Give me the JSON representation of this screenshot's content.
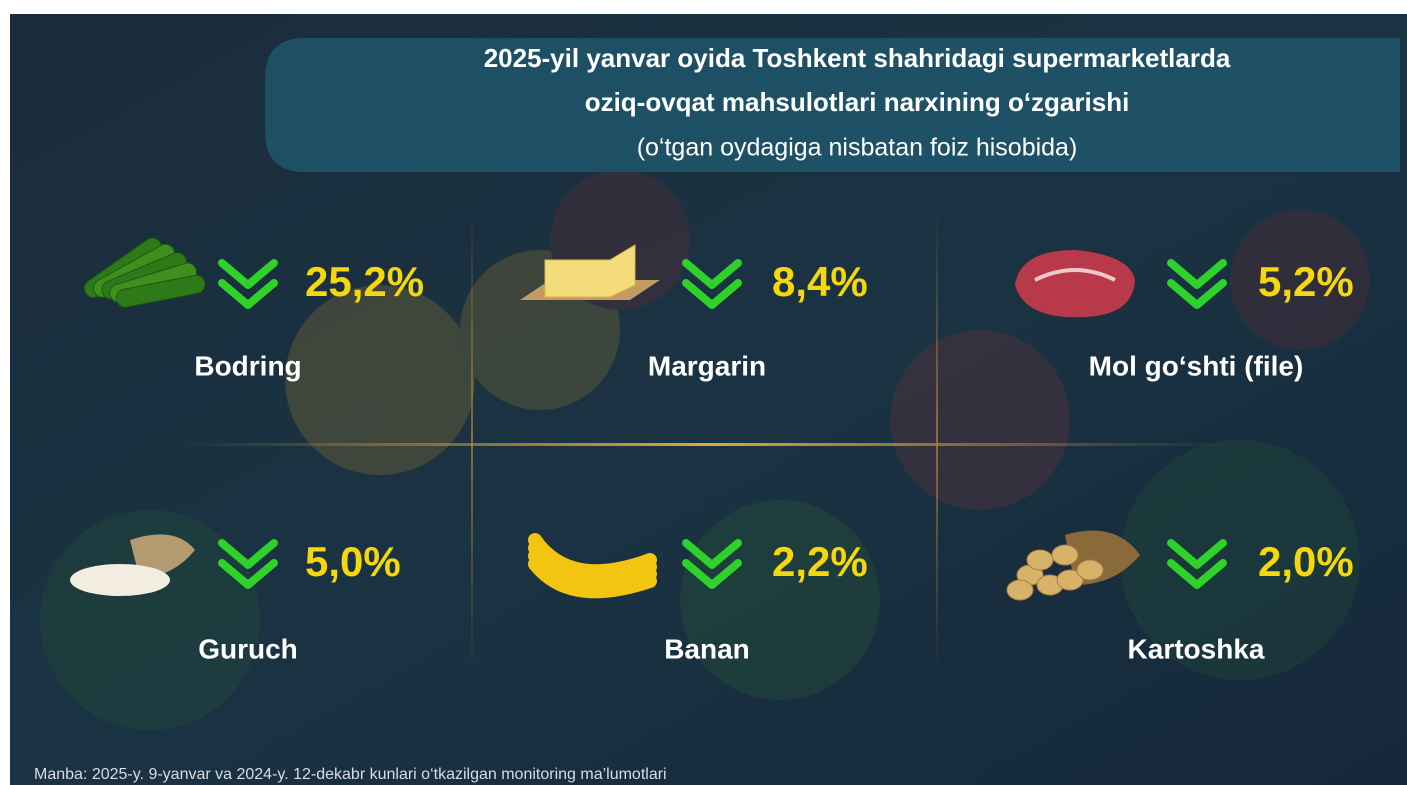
{
  "header": {
    "title_lines": [
      "2025-yil yanvar oyida Toshkent shahridagi supermarketlarda",
      "oziq-ovqat mahsulotlari narxining o‘zgarishi",
      "(o‘tgan oydagiga nisbatan foiz hisobida)"
    ]
  },
  "items": [
    {
      "name": "Bodring",
      "change": "25,2%"
    },
    {
      "name": "Margarin",
      "change": "8,4%"
    },
    {
      "name": "Mol go‘shti (file)",
      "change": "5,2%"
    },
    {
      "name": "Guruch",
      "change": "5,0%"
    },
    {
      "name": "Banan",
      "change": "2,2%"
    },
    {
      "name": "Kartoshka",
      "change": "2,0%"
    }
  ],
  "footer": {
    "source": "Manba: 2025-y.  9-yanvar va 2024-y. 12-dekabr kunlari o‘tkazilgan monitoring ma’lumotlari"
  }
}
